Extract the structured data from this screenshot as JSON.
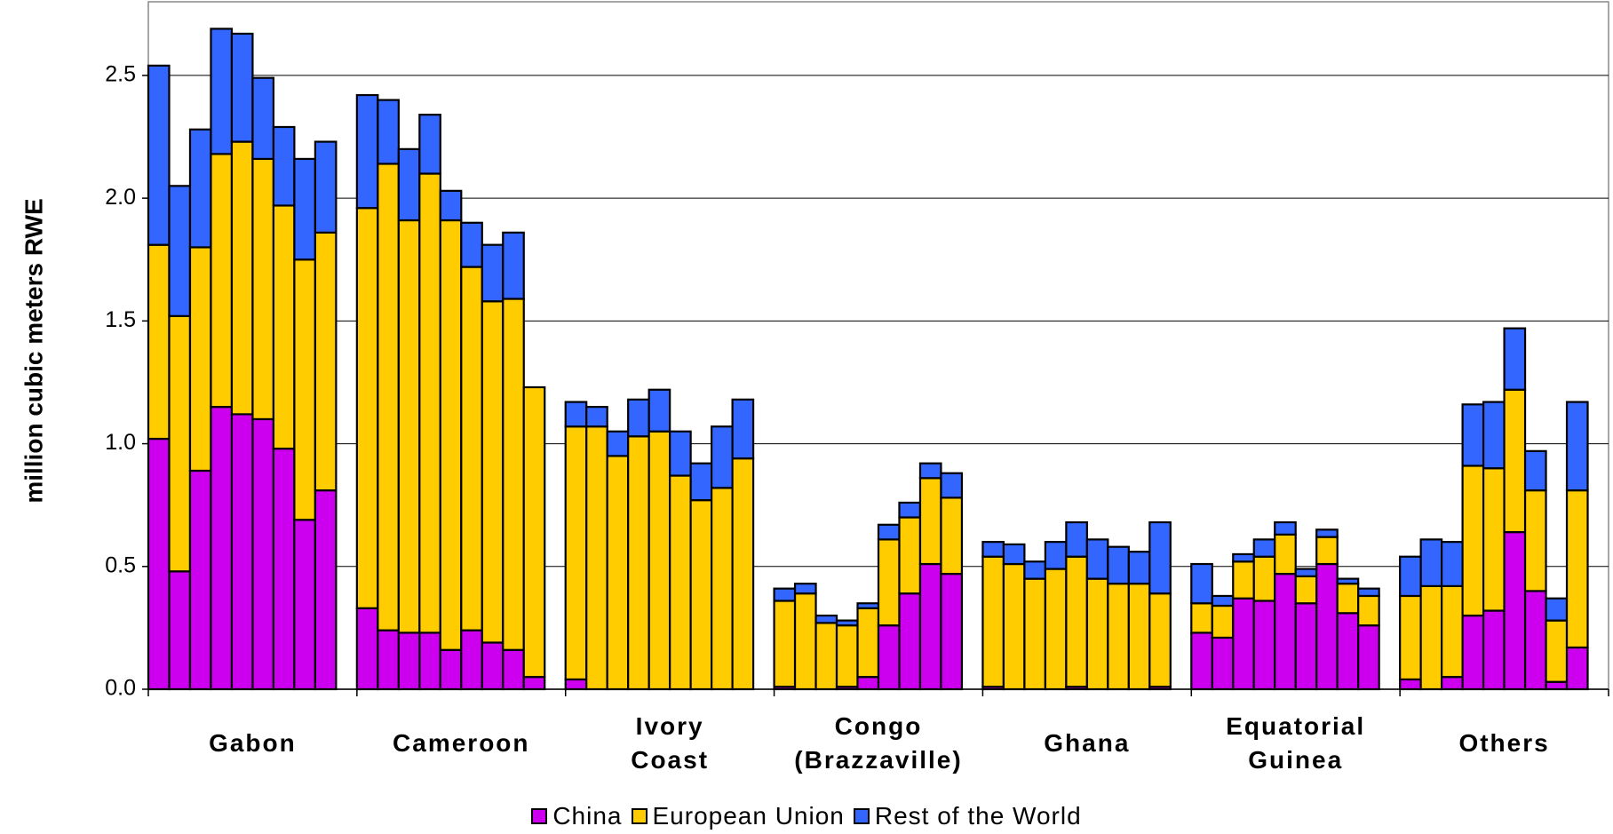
{
  "chart_data": {
    "type": "stacked_bar",
    "y_label": "million cubic meters RWE",
    "categories": [
      "Gabon",
      "Cameroon",
      "Ivory\nCoast",
      "Congo\n(Brazzaville)",
      "Ghana",
      "Equatorial\nGuinea",
      "Others"
    ],
    "series": [
      {
        "name": "China",
        "color": "#cc00ee",
        "values": [
          [
            1.02,
            0.48,
            0.89,
            1.15,
            1.12,
            1.1,
            0.98,
            0.69,
            0.81
          ],
          [
            0.33,
            0.24,
            0.23,
            0.23,
            0.16,
            0.24,
            0.19,
            0.16,
            0.05
          ],
          [
            0.04,
            0,
            0,
            0,
            0,
            0,
            0,
            0,
            0
          ],
          [
            0.01,
            0,
            0,
            0.01,
            0.05,
            0.26,
            0.39,
            0.51,
            0.47
          ],
          [
            0.01,
            0,
            0,
            0,
            0.01,
            0,
            0,
            0,
            0.01
          ],
          [
            0.23,
            0.21,
            0.37,
            0.36,
            0.47,
            0.35,
            0.51,
            0.31,
            0.26
          ],
          [
            0.04,
            0,
            0.05,
            0.3,
            0.32,
            0.64,
            0.4,
            0.03,
            0.17
          ]
        ]
      },
      {
        "name": "European Union",
        "color": "#ffcc00",
        "values": [
          [
            0.79,
            1.04,
            0.91,
            1.03,
            1.11,
            1.06,
            0.99,
            1.06,
            1.05
          ],
          [
            1.63,
            1.9,
            1.68,
            1.87,
            1.75,
            1.48,
            1.39,
            1.43,
            1.18
          ],
          [
            1.03,
            1.07,
            0.95,
            1.03,
            1.05,
            0.87,
            0.77,
            0.82,
            0.94
          ],
          [
            0.35,
            0.39,
            0.27,
            0.25,
            0.28,
            0.35,
            0.31,
            0.35,
            0.31
          ],
          [
            0.53,
            0.51,
            0.45,
            0.49,
            0.53,
            0.45,
            0.43,
            0.43,
            0.38
          ],
          [
            0.12,
            0.13,
            0.15,
            0.18,
            0.16,
            0.11,
            0.11,
            0.12,
            0.12
          ],
          [
            0.34,
            0.42,
            0.37,
            0.61,
            0.58,
            0.58,
            0.41,
            0.25,
            0.64
          ]
        ]
      },
      {
        "name": "Rest of the World",
        "color": "#3366ff",
        "values": [
          [
            0.73,
            0.53,
            0.48,
            0.51,
            0.44,
            0.33,
            0.32,
            0.41,
            0.37
          ],
          [
            0.46,
            0.26,
            0.29,
            0.24,
            0.12,
            0.18,
            0.23,
            0.27,
            0
          ],
          [
            0.1,
            0.08,
            0.1,
            0.15,
            0.17,
            0.18,
            0.15,
            0.25,
            0.24
          ],
          [
            0.05,
            0.04,
            0.03,
            0.02,
            0.02,
            0.06,
            0.06,
            0.06,
            0.1
          ],
          [
            0.06,
            0.08,
            0.07,
            0.11,
            0.14,
            0.16,
            0.15,
            0.13,
            0.29
          ],
          [
            0.16,
            0.04,
            0.03,
            0.07,
            0.05,
            0.03,
            0.03,
            0.02,
            0.03
          ],
          [
            0.16,
            0.19,
            0.18,
            0.25,
            0.27,
            0.25,
            0.16,
            0.09,
            0.36
          ]
        ]
      }
    ],
    "ylim": [
      0,
      2.8
    ],
    "yticks": [
      {
        "value": 0,
        "label": "0.0"
      },
      0.5,
      {
        "value": 1,
        "label": "1.0"
      },
      1.5,
      {
        "value": 2,
        "label": "2.0"
      },
      2.5
    ],
    "grid": true,
    "legend": "bottom"
  }
}
